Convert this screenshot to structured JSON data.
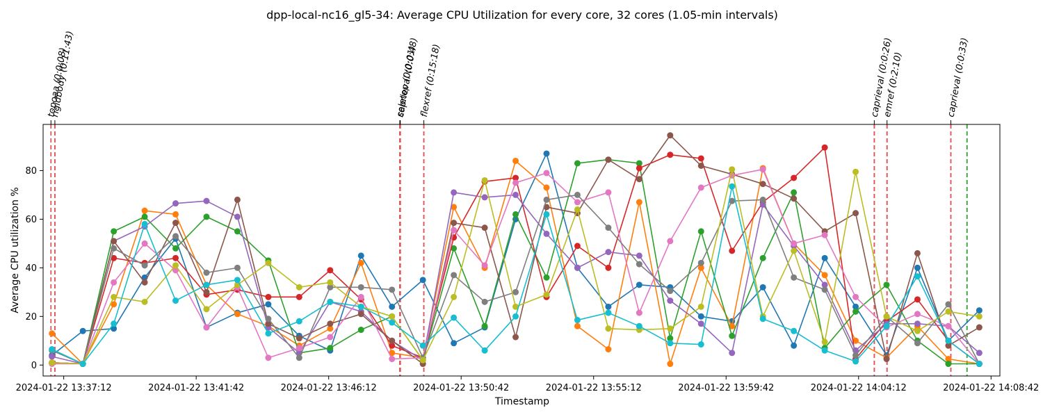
{
  "chart_data": {
    "type": "line",
    "title": "dpp-local-nc16_gl5-34: Average CPU Utilization for every core, 32 cores (1.05-min intervals)",
    "xlabel": "Timestamp",
    "ylabel": "Average CPU utilization %",
    "xlim": [
      "2024-01-22 13:36:30",
      "2024-01-22 14:09:00"
    ],
    "ylim": [
      -4.5,
      99
    ],
    "x_ticks": [
      "2024-01-22 13:37:12",
      "2024-01-22 13:41:42",
      "2024-01-22 13:46:12",
      "2024-01-22 13:50:42",
      "2024-01-22 13:55:12",
      "2024-01-22 13:59:42",
      "2024-01-22 14:04:12",
      "2024-01-22 14:08:42"
    ],
    "y_ticks": [
      0,
      20,
      40,
      60,
      80
    ],
    "grid": false,
    "colors": [
      "#1f77b4",
      "#ff7f0e",
      "#2ca02c",
      "#d62728",
      "#9467bd",
      "#8c564b",
      "#e377c2",
      "#7f7f7f",
      "#bcbd22",
      "#17becf"
    ],
    "x": [
      "2024-01-22 13:36:48",
      "2024-01-22 13:37:51",
      "2024-01-22 13:38:54",
      "2024-01-22 13:39:57",
      "2024-01-22 13:41:00",
      "2024-01-22 13:42:03",
      "2024-01-22 13:43:06",
      "2024-01-22 13:44:09",
      "2024-01-22 13:45:12",
      "2024-01-22 13:46:15",
      "2024-01-22 13:47:18",
      "2024-01-22 13:48:21",
      "2024-01-22 13:49:24",
      "2024-01-22 13:50:27",
      "2024-01-22 13:51:30",
      "2024-01-22 13:52:33",
      "2024-01-22 13:53:36",
      "2024-01-22 13:54:39",
      "2024-01-22 13:55:42",
      "2024-01-22 13:56:45",
      "2024-01-22 13:57:48",
      "2024-01-22 13:58:51",
      "2024-01-22 13:59:54",
      "2024-01-22 14:00:57",
      "2024-01-22 14:02:00",
      "2024-01-22 14:03:03",
      "2024-01-22 14:04:06",
      "2024-01-22 14:05:09",
      "2024-01-22 14:06:12",
      "2024-01-22 14:07:15",
      "2024-01-22 14:08:18"
    ],
    "series": [
      {
        "values": [
          4,
          14,
          15,
          36,
          52,
          15.5,
          21.5,
          25,
          12,
          6,
          45,
          24,
          35,
          9,
          15.5,
          60,
          87,
          40,
          24,
          33,
          32,
          20,
          18,
          32,
          8,
          44,
          24,
          4,
          40,
          10,
          22.5
        ]
      },
      {
        "values": [
          13,
          0.5,
          25,
          63.5,
          62,
          33,
          21,
          16,
          8,
          15,
          42,
          5,
          3,
          65,
          40,
          84,
          73,
          16,
          6.5,
          67,
          0.5,
          40,
          16,
          81,
          50,
          37,
          10,
          3,
          16,
          2.5,
          0.5
        ]
      },
      {
        "values": [
          1,
          0.5,
          55,
          61,
          48,
          61,
          55,
          43,
          5,
          7,
          14.5,
          20,
          2,
          48,
          16,
          62,
          36,
          83,
          84.5,
          83,
          11,
          55,
          12,
          44,
          71,
          7,
          22,
          33,
          10,
          0.5,
          0.5
        ]
      },
      {
        "values": [
          1,
          0.5,
          44,
          42,
          44,
          29,
          31,
          28,
          28,
          39,
          27,
          8,
          3,
          52.5,
          75.5,
          77,
          28,
          49,
          40,
          81,
          86.5,
          85,
          47,
          67,
          77,
          89.5,
          2.5,
          18,
          27,
          10,
          0.5
        ]
      },
      {
        "values": [
          3.5,
          0.5,
          51,
          57,
          66.5,
          67.5,
          61,
          15.5,
          5,
          26,
          22,
          10,
          2,
          71,
          69,
          70,
          54,
          40,
          46.5,
          45,
          26.5,
          17,
          5,
          66,
          49,
          33,
          6,
          17,
          17,
          16,
          5
        ]
      },
      {
        "values": [
          1,
          0.5,
          51,
          34,
          58.5,
          30,
          68,
          17,
          11,
          17,
          21,
          10,
          0.5,
          58.5,
          56.5,
          11.5,
          65,
          62.5,
          84.5,
          76.5,
          94.5,
          82,
          78.5,
          74.5,
          68.5,
          55,
          62.5,
          2.5,
          46,
          8,
          15.5
        ]
      },
      {
        "values": [
          0.5,
          0.5,
          34,
          50,
          39,
          15.5,
          32,
          3,
          7,
          11.5,
          28,
          2.5,
          3,
          55.5,
          41,
          75,
          79,
          67,
          71,
          21.5,
          51,
          73,
          78,
          80.5,
          50,
          53.5,
          28,
          15.5,
          21,
          16,
          0.5
        ]
      },
      {
        "values": [
          6,
          0.5,
          48,
          41,
          53,
          38,
          40,
          19,
          3,
          32,
          32,
          31,
          3,
          37,
          26,
          30,
          68,
          70,
          56.5,
          41.5,
          30.5,
          42,
          67.5,
          68,
          36,
          31,
          4,
          20,
          9,
          25,
          0.5
        ]
      },
      {
        "values": [
          1,
          0.5,
          28,
          26,
          41,
          23,
          33,
          42,
          32,
          34,
          24,
          20,
          2,
          28,
          76,
          24,
          29,
          64,
          15,
          14.5,
          15,
          24,
          80.5,
          20,
          47,
          9.5,
          79.5,
          20,
          14,
          22,
          20
        ]
      },
      {
        "values": [
          6.5,
          0.5,
          17,
          58,
          26.5,
          33,
          35,
          13,
          18,
          26,
          24,
          17.5,
          8,
          19.5,
          6,
          20,
          62,
          18.5,
          21.5,
          16,
          9,
          8.5,
          73.5,
          19,
          14,
          6,
          1.5,
          16,
          36.5,
          10,
          0.5
        ]
      }
    ],
    "events": [
      {
        "label": "topoaa (0:0:08)",
        "x": "2024-01-22 13:36:46",
        "x_end": "2024-01-22 13:36:54",
        "color": "#e15759"
      },
      {
        "label": "rigidbody (0:11:43)",
        "x": "2024-01-22 13:36:54",
        "x_end": "2024-01-22 13:48:37",
        "color": "#e15759"
      },
      {
        "label": "seletop (0:0:01)",
        "x": "2024-01-22 13:48:37",
        "x_end": "2024-01-22 13:48:38",
        "color": "#e15759"
      },
      {
        "label": "caprieval (0:0:48)",
        "x": "2024-01-22 13:48:38",
        "x_end": "2024-01-22 13:49:26",
        "color": "#e15759"
      },
      {
        "label": "flexref (0:15:18)",
        "x": "2024-01-22 13:49:26",
        "x_end": "2024-01-22 14:04:44",
        "color": "#e15759"
      },
      {
        "label": "caprieval (0:0:26)",
        "x": "2024-01-22 14:04:44",
        "x_end": "2024-01-22 14:05:10",
        "color": "#e15759"
      },
      {
        "label": "emref (0:2:10)",
        "x": "2024-01-22 14:05:10",
        "x_end": "2024-01-22 14:07:20",
        "color": "#e15759"
      },
      {
        "label": "caprieval (0:0:33)",
        "x": "2024-01-22 14:07:20",
        "x_end": "2024-01-22 14:07:53",
        "color": "#e15759",
        "end_color": "#2ca02c"
      }
    ]
  }
}
